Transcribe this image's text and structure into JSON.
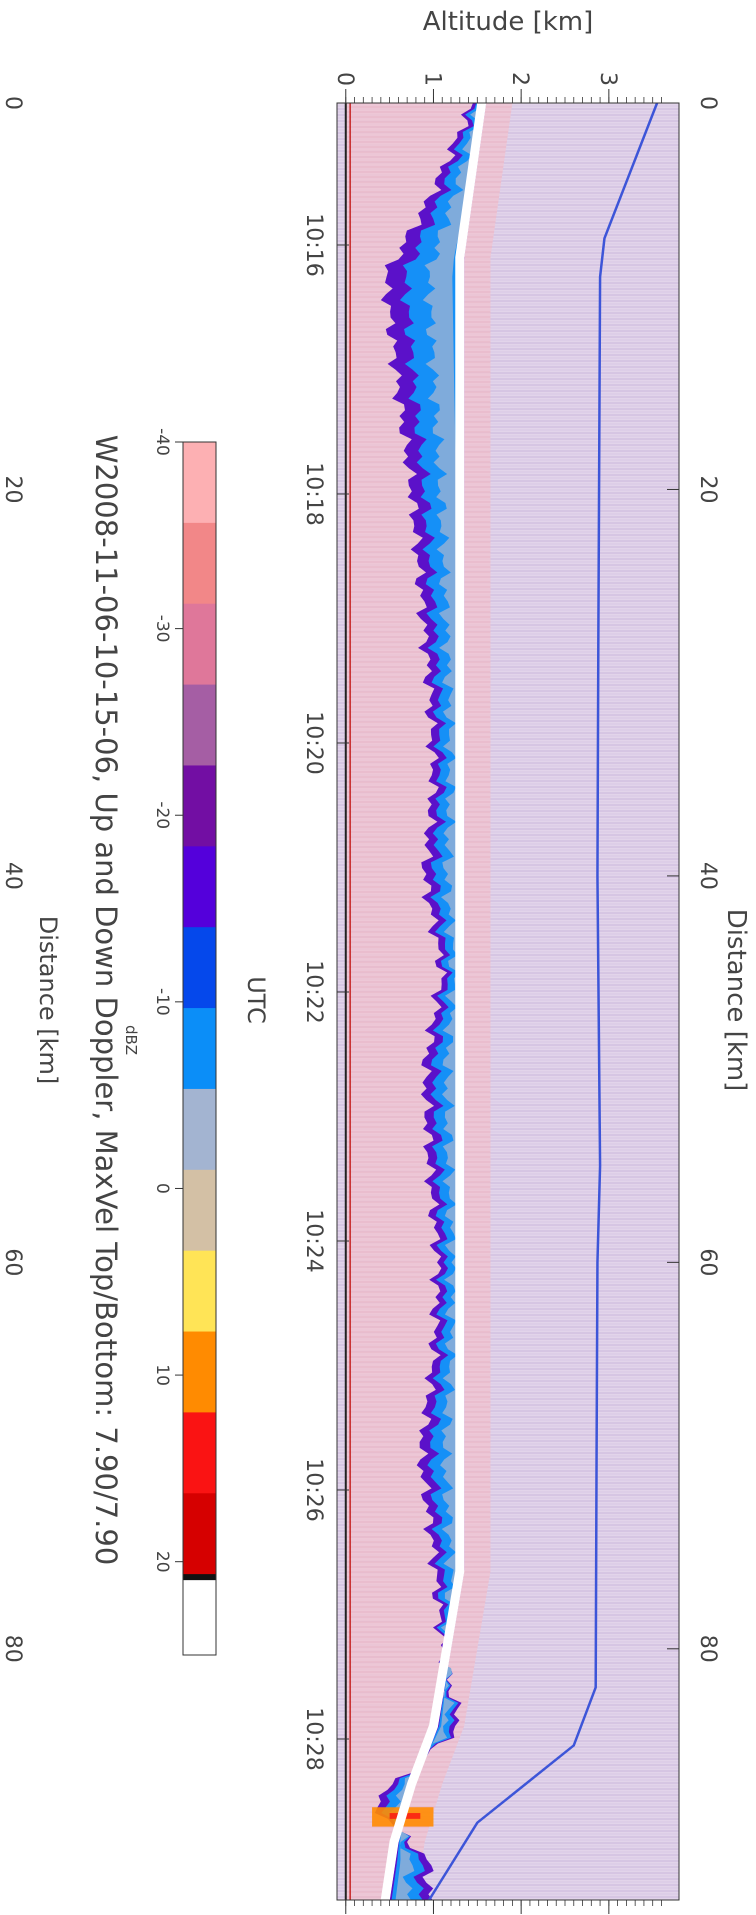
{
  "chart_data": {
    "type": "heatmap",
    "title": "W2008-11-06-10-15-06, Up and Down Doppler, MaxVel Top/Bottom: 7.90/7.90",
    "xlabel_bottom": "UTC",
    "xlabel_top": "Distance [km]",
    "ylabel": "Altitude [km]",
    "x_time_ticks": [
      "10:16",
      "10:18",
      "10:20",
      "10:22",
      "10:24",
      "10:26",
      "10:28"
    ],
    "x_distance_ticks_top": [
      0,
      20,
      40,
      60,
      80
    ],
    "x_distance_ticks_bottom": [
      0,
      20,
      40,
      60,
      80
    ],
    "x_distance_label_bottom": "Distance [km]",
    "xlim_distance": [
      0,
      93
    ],
    "ylim_altitude": [
      -0.1,
      3.8
    ],
    "y_ticks": [
      0,
      1,
      2,
      3
    ],
    "altitude_trace_1_km": {
      "distance_km": [
        0,
        7,
        9,
        28,
        40,
        55,
        60,
        70,
        82,
        85,
        89,
        93
      ],
      "altitude_km": [
        3.55,
        2.95,
        2.9,
        2.88,
        2.87,
        2.9,
        2.87,
        2.86,
        2.85,
        2.6,
        1.5,
        0.95
      ]
    },
    "reflectivity_top_km": {
      "distance_km": [
        0,
        5,
        9,
        15,
        20,
        25,
        30,
        35,
        40,
        45,
        50,
        55,
        60,
        65,
        70,
        75,
        80,
        84,
        88,
        91
      ],
      "altitude_km": [
        1.45,
        0.95,
        0.45,
        0.6,
        0.75,
        0.85,
        0.95,
        1.0,
        0.9,
        1.1,
        0.9,
        0.95,
        1.05,
        1.0,
        0.85,
        1.0,
        1.1,
        1.3,
        0.3,
        0.95
      ]
    },
    "white_band_km": {
      "distance_km": [
        0,
        8,
        12,
        70,
        76,
        84,
        87,
        90,
        93
      ],
      "altitude_km": [
        1.55,
        1.3,
        1.3,
        1.3,
        1.3,
        1.0,
        0.75,
        0.55,
        0.45
      ]
    },
    "colorbar": {
      "label": "dBZ",
      "ticks": [
        -40,
        -30,
        -20,
        -10,
        0,
        10,
        20
      ],
      "range": [
        -40,
        25
      ],
      "colors": [
        "#fdb0b3",
        "#f28788",
        "#df779a",
        "#a55ea4",
        "#720ea3",
        "#5400db",
        "#0548eb",
        "#0b8ef8",
        "#a3b4d1",
        "#d3c0a5",
        "#ffe456",
        "#ff8b01",
        "#fa1313",
        "#d60000",
        "#111111"
      ]
    }
  },
  "colors": {
    "background_noise": "#c9aed3",
    "pink_layer": "#f4a2b0",
    "ice_dark_violet": "#5b11c9",
    "ice_blue": "#1590f7",
    "trace_blue": "#3d55d8"
  }
}
